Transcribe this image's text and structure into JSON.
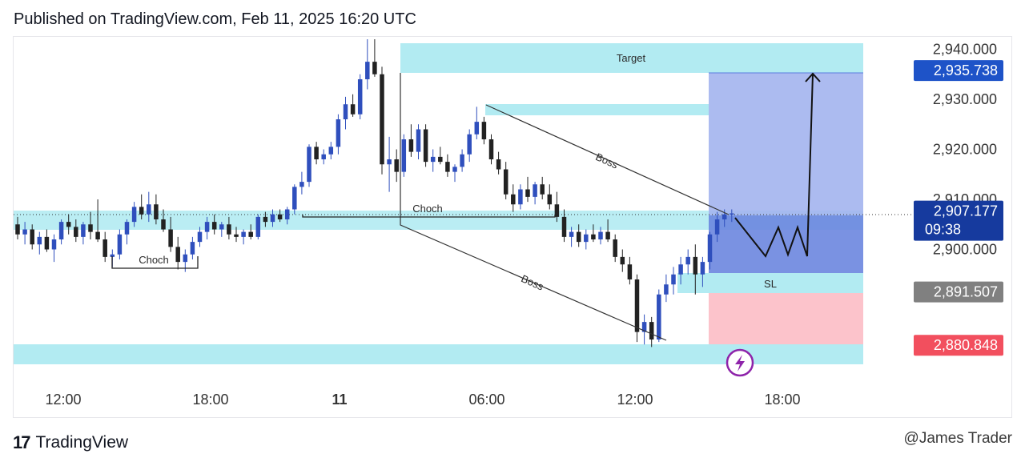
{
  "header": {
    "text": "Published on TradingView.com, Feb 11, 2025 16:20 UTC"
  },
  "footer": {
    "brand": "TradingView",
    "watermark": "@James Trader"
  },
  "colors": {
    "zone": "#b2ebf2",
    "target_box": "#a3b4ee",
    "entry_box": "#6b86df",
    "stop_box": "#fcc3cb",
    "up_candle": "#2f4fbd",
    "down_candle": "#222222",
    "last_price_tag": "#163a9e",
    "target_tag": "#1e53c8",
    "sl_tag": "#808080",
    "stop_tag": "#f24f5e",
    "lightning": "#8e24aa"
  },
  "chart_data": {
    "type": "candlestick",
    "symbol_note": "",
    "y_axis": {
      "min": 2868,
      "max": 2942,
      "ticks": [
        "2,940.000",
        "2,930.000",
        "2,920.000",
        "2,910.000",
        "2,900.000"
      ]
    },
    "x_axis": {
      "ticks": [
        "12:00",
        "18:00",
        "11",
        "06:00",
        "12:00",
        "18:00"
      ]
    },
    "price_tags": [
      {
        "id": "target",
        "value": 2935.738,
        "label": "2,935.738"
      },
      {
        "id": "last",
        "value": 2907.177,
        "label": "2,907.177",
        "timer": "09:38"
      },
      {
        "id": "sl",
        "value": 2891.507,
        "label": "2,891.507"
      },
      {
        "id": "stop",
        "value": 2880.848,
        "label": "2,880.848"
      }
    ],
    "annotations": [
      {
        "text": "Target"
      },
      {
        "text": "Choch"
      },
      {
        "text": "Choch"
      },
      {
        "text": "Boss"
      },
      {
        "text": "Boss"
      },
      {
        "text": "SL"
      }
    ],
    "candles": [
      [
        2905.0,
        2906.5,
        2902.0,
        2903.0
      ],
      [
        2903.0,
        2905.5,
        2901.0,
        2904.0
      ],
      [
        2904.0,
        2905.0,
        2900.0,
        2901.0
      ],
      [
        2901.0,
        2903.5,
        2899.0,
        2902.5
      ],
      [
        2902.5,
        2904.0,
        2899.5,
        2900.0
      ],
      [
        2900.0,
        2903.0,
        2897.5,
        2902.0
      ],
      [
        2902.0,
        2906.0,
        2901.0,
        2905.5
      ],
      [
        2905.5,
        2907.0,
        2903.0,
        2904.5
      ],
      [
        2904.5,
        2906.0,
        2901.5,
        2902.5
      ],
      [
        2902.5,
        2905.5,
        2901.0,
        2905.0
      ],
      [
        2905.0,
        2907.5,
        2902.0,
        2903.5
      ],
      [
        2903.5,
        2910.0,
        2901.5,
        2902.0
      ],
      [
        2902.0,
        2903.5,
        2897.5,
        2898.5
      ],
      [
        2898.5,
        2900.0,
        2896.5,
        2899.0
      ],
      [
        2899.0,
        2904.0,
        2898.0,
        2903.0
      ],
      [
        2903.0,
        2906.0,
        2901.0,
        2905.5
      ],
      [
        2905.5,
        2909.5,
        2904.5,
        2908.5
      ],
      [
        2908.5,
        2911.0,
        2906.0,
        2907.0
      ],
      [
        2907.0,
        2911.5,
        2905.5,
        2909.0
      ],
      [
        2909.0,
        2911.0,
        2905.0,
        2906.0
      ],
      [
        2906.0,
        2908.0,
        2903.5,
        2904.0
      ],
      [
        2904.0,
        2906.5,
        2899.5,
        2900.5
      ],
      [
        2900.5,
        2902.5,
        2896.0,
        2897.5
      ],
      [
        2897.5,
        2900.0,
        2895.5,
        2899.0
      ],
      [
        2899.0,
        2902.5,
        2898.0,
        2901.5
      ],
      [
        2901.5,
        2904.5,
        2900.5,
        2903.5
      ],
      [
        2903.5,
        2906.5,
        2902.0,
        2905.5
      ],
      [
        2905.5,
        2907.0,
        2903.0,
        2904.0
      ],
      [
        2904.0,
        2905.5,
        2902.5,
        2905.0
      ],
      [
        2905.0,
        2906.5,
        2902.0,
        2903.0
      ],
      [
        2903.0,
        2904.5,
        2901.5,
        2902.5
      ],
      [
        2902.5,
        2904.0,
        2901.0,
        2903.5
      ],
      [
        2903.5,
        2905.0,
        2902.0,
        2902.5
      ],
      [
        2902.5,
        2907.0,
        2902.0,
        2906.5
      ],
      [
        2906.5,
        2907.5,
        2904.5,
        2905.5
      ],
      [
        2905.5,
        2908.0,
        2904.5,
        2907.0
      ],
      [
        2907.0,
        2908.0,
        2905.5,
        2906.0
      ],
      [
        2906.0,
        2908.5,
        2905.0,
        2908.0
      ],
      [
        2908.0,
        2913.0,
        2907.0,
        2912.5
      ],
      [
        2912.5,
        2915.5,
        2911.0,
        2913.5
      ],
      [
        2913.5,
        2921.0,
        2912.5,
        2920.5
      ],
      [
        2920.5,
        2921.5,
        2917.0,
        2918.0
      ],
      [
        2918.0,
        2920.0,
        2917.0,
        2919.0
      ],
      [
        2919.0,
        2921.5,
        2918.0,
        2920.5
      ],
      [
        2920.5,
        2927.0,
        2919.0,
        2926.0
      ],
      [
        2926.0,
        2930.5,
        2924.0,
        2929.0
      ],
      [
        2929.0,
        2931.0,
        2926.5,
        2927.0
      ],
      [
        2927.0,
        2935.0,
        2926.0,
        2934.0
      ],
      [
        2934.0,
        2942.0,
        2932.0,
        2937.5
      ],
      [
        2937.5,
        2942.0,
        2934.5,
        2935.0
      ],
      [
        2935.0,
        2936.5,
        2915.0,
        2917.0
      ],
      [
        2917.0,
        2922.5,
        2911.5,
        2918.0
      ],
      [
        2918.0,
        2920.0,
        2913.5,
        2915.5
      ],
      [
        2915.5,
        2923.0,
        2914.5,
        2922.0
      ],
      [
        2922.0,
        2925.0,
        2918.5,
        2919.5
      ],
      [
        2919.5,
        2925.0,
        2918.0,
        2924.0
      ],
      [
        2924.0,
        2925.0,
        2916.5,
        2917.5
      ],
      [
        2917.5,
        2920.0,
        2915.5,
        2918.5
      ],
      [
        2918.5,
        2920.5,
        2917.0,
        2917.5
      ],
      [
        2917.5,
        2919.0,
        2914.5,
        2915.5
      ],
      [
        2915.5,
        2917.0,
        2913.5,
        2916.5
      ],
      [
        2916.5,
        2920.0,
        2915.5,
        2919.0
      ],
      [
        2919.0,
        2924.0,
        2917.5,
        2923.0
      ],
      [
        2923.0,
        2928.5,
        2922.0,
        2925.5
      ],
      [
        2925.5,
        2926.5,
        2921.0,
        2922.0
      ],
      [
        2922.0,
        2923.0,
        2917.0,
        2918.0
      ],
      [
        2918.0,
        2919.5,
        2915.0,
        2916.0
      ],
      [
        2916.0,
        2917.5,
        2910.0,
        2911.0
      ],
      [
        2911.0,
        2913.0,
        2907.5,
        2909.0
      ],
      [
        2909.0,
        2913.0,
        2908.0,
        2912.0
      ],
      [
        2912.0,
        2914.5,
        2909.5,
        2910.5
      ],
      [
        2910.5,
        2913.5,
        2909.0,
        2913.0
      ],
      [
        2913.0,
        2914.5,
        2910.0,
        2911.0
      ],
      [
        2911.0,
        2913.0,
        2908.0,
        2909.0
      ],
      [
        2909.0,
        2911.5,
        2905.5,
        2906.5
      ],
      [
        2906.5,
        2908.0,
        2901.5,
        2902.5
      ],
      [
        2902.5,
        2904.5,
        2900.5,
        2903.5
      ],
      [
        2903.5,
        2905.0,
        2900.5,
        2901.5
      ],
      [
        2901.5,
        2904.0,
        2900.0,
        2903.0
      ],
      [
        2903.0,
        2905.0,
        2901.5,
        2902.0
      ],
      [
        2902.0,
        2904.5,
        2901.0,
        2903.5
      ],
      [
        2903.5,
        2906.0,
        2901.5,
        2902.0
      ],
      [
        2902.0,
        2903.0,
        2897.5,
        2898.5
      ],
      [
        2898.5,
        2900.0,
        2895.5,
        2897.0
      ],
      [
        2897.0,
        2898.5,
        2893.0,
        2894.0
      ],
      [
        2894.0,
        2895.0,
        2881.5,
        2883.5
      ],
      [
        2883.5,
        2887.0,
        2881.0,
        2885.5
      ],
      [
        2885.5,
        2886.5,
        2880.5,
        2882.0
      ],
      [
        2882.0,
        2892.0,
        2881.5,
        2891.0
      ],
      [
        2891.0,
        2895.0,
        2889.5,
        2893.0
      ],
      [
        2893.0,
        2896.5,
        2891.0,
        2895.0
      ],
      [
        2895.0,
        2898.5,
        2893.0,
        2897.0
      ],
      [
        2897.0,
        2900.0,
        2895.0,
        2898.5
      ],
      [
        2898.5,
        2901.0,
        2891.0,
        2895.0
      ],
      [
        2895.0,
        2898.5,
        2892.5,
        2897.5
      ],
      [
        2897.5,
        2903.5,
        2896.0,
        2903.0
      ],
      [
        2903.0,
        2907.5,
        2901.5,
        2906.0
      ],
      [
        2906.0,
        2908.0,
        2904.5,
        2907.0
      ],
      [
        2907.0,
        2908.0,
        2905.5,
        2907.2
      ]
    ]
  }
}
